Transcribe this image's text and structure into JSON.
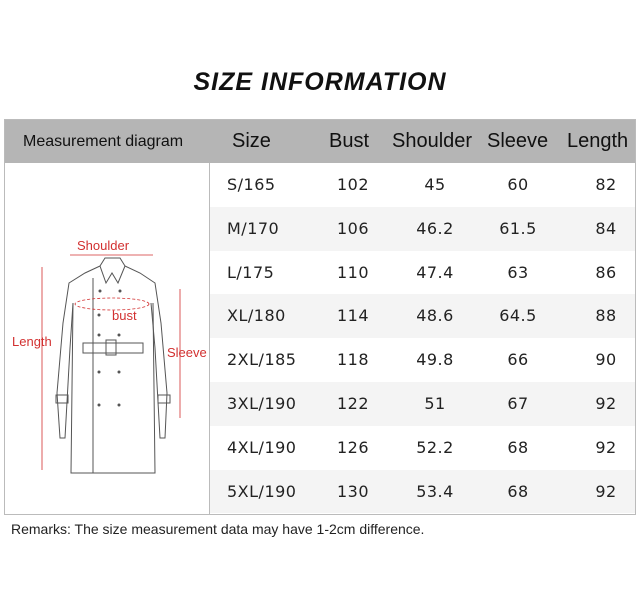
{
  "title": "SIZE INFORMATION",
  "table": {
    "headers": [
      "Measurement diagram",
      "Size",
      "Bust",
      "Shoulder",
      "Sleeve",
      "Length"
    ],
    "rows": [
      [
        "S/165",
        "102",
        "45",
        "60",
        "82"
      ],
      [
        "M/170",
        "106",
        "46.2",
        "61.5",
        "84"
      ],
      [
        "L/175",
        "110",
        "47.4",
        "63",
        "86"
      ],
      [
        "XL/180",
        "114",
        "48.6",
        "64.5",
        "88"
      ],
      [
        "2XL/185",
        "118",
        "49.8",
        "66",
        "90"
      ],
      [
        "3XL/190",
        "122",
        "51",
        "67",
        "92"
      ],
      [
        "4XL/190",
        "126",
        "52.2",
        "68",
        "92"
      ],
      [
        "5XL/190",
        "130",
        "53.4",
        "68",
        "92"
      ]
    ]
  },
  "diagram": {
    "labels": {
      "shoulder": "Shoulder",
      "bust": "bust",
      "length": "Length",
      "sleeve": "Sleeve"
    },
    "label_color": "#d23030"
  },
  "remarks": "Remarks:  The size measurement data may have 1-2cm difference."
}
